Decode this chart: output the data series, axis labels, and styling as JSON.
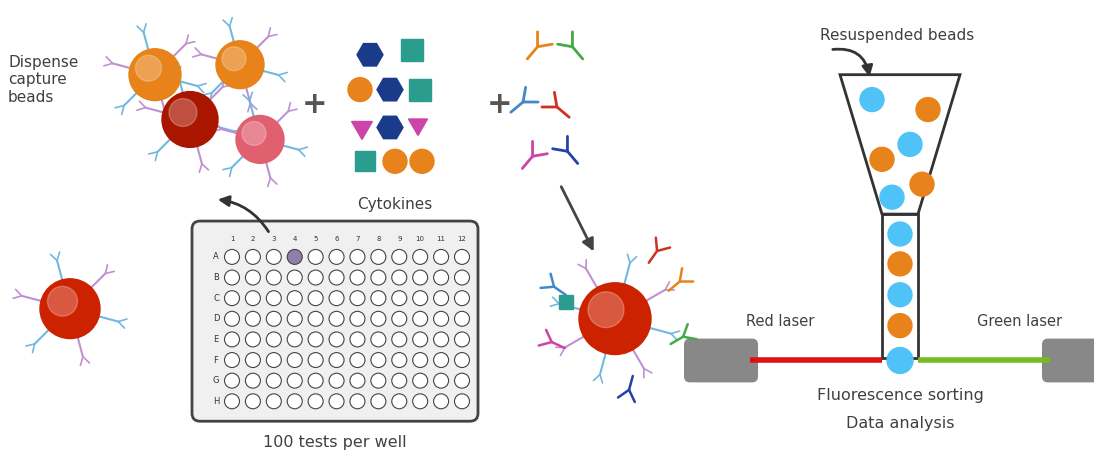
{
  "bg_color": "#ffffff",
  "text_color": "#404040",
  "labels": {
    "dispense": "Dispense\ncapture\nbeads",
    "cytokines": "Cytokines",
    "tests_per_well": "100 tests per well",
    "resuspended": "Resuspended beads",
    "fluor_sorting": "Fluorescence sorting",
    "data_analysis": "Data analysis",
    "red_laser": "Red laser",
    "green_laser": "Green laser"
  },
  "bead_orange": "#E8821A",
  "bead_red": "#CC2200",
  "bead_pink": "#E06070",
  "bead_dark_red": "#AA1500",
  "spoke_color": "#70B8E0",
  "spoke_color2": "#C090D0",
  "light_blue": "#4FC3F7",
  "orange_bead": "#E8821A",
  "cyt_dark_blue": "#1A3A8A",
  "cyt_teal": "#2A9D8F",
  "cyt_orange": "#E8821A",
  "cyt_magenta": "#CC44AA",
  "cyt_blue2": "#2255CC",
  "ab_orange": "#E8821A",
  "ab_green": "#44AA44",
  "ab_blue": "#4488CC",
  "ab_red": "#CC3322",
  "ab_magenta": "#CC44AA",
  "ab_dark_blue": "#2244AA",
  "tube_color": "#333333",
  "red_laser_color": "#DD1111",
  "green_laser_color": "#77BB22",
  "laser_body_color": "#888888",
  "well_border": "#444444",
  "well_filled_color": "#9080A8",
  "row_labels": [
    "A",
    "B",
    "C",
    "D",
    "E",
    "F",
    "G",
    "H"
  ],
  "col_labels": [
    "1",
    "2",
    "3",
    "4",
    "5",
    "6",
    "7",
    "8",
    "9",
    "10",
    "11",
    "12"
  ]
}
